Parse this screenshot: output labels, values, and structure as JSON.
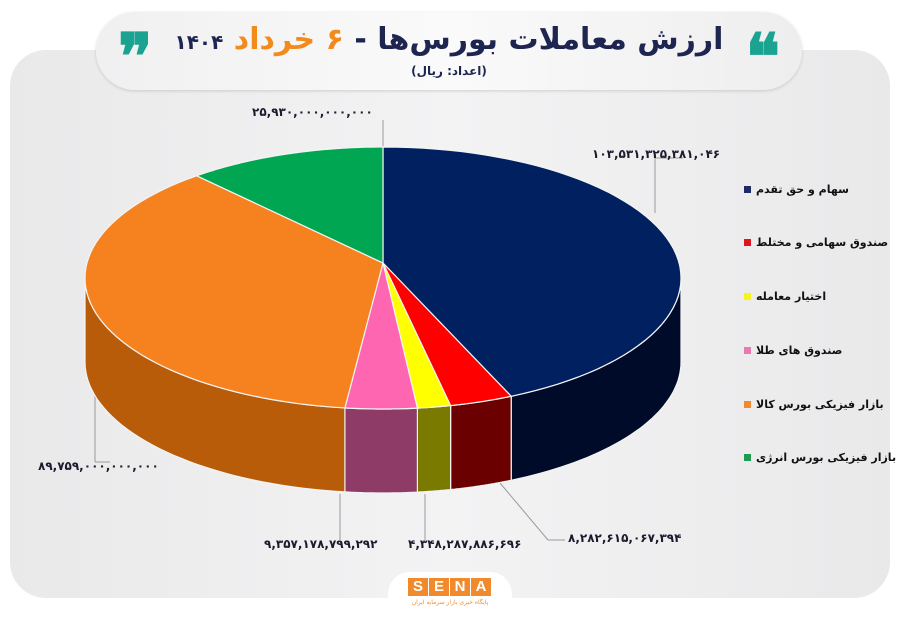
{
  "header": {
    "title_main": "ارزش معاملات بورس‌ها -",
    "title_accent": "۶ خرداد",
    "title_year": "۱۴۰۴",
    "subtitle": "(اعداد: ریال)",
    "quote_open": "❞",
    "quote_close": "❝"
  },
  "chart_data": {
    "type": "pie",
    "title": "ارزش معاملات بورس‌ها - ۶ خرداد ۱۴۰۴",
    "subtitle": "(اعداد: ریال)",
    "unit": "ریال",
    "style": "3d",
    "legend_position": "right",
    "categories": [
      "سهام و حق تقدم",
      "صندوق سهامی و مختلط",
      "اختیار معامله",
      "صندوق های طلا",
      "بازار فیزیکی بورس کالا",
      "بازار فیزیکی بورس انرژی"
    ],
    "values": [
      103531325381046,
      8282615067394,
      4348287886696,
      9357178799292,
      89759000000000,
      25930000000000
    ],
    "colors": [
      "#00205f",
      "#ff0000",
      "#ffff00",
      "#ff66b2",
      "#f5821f",
      "#00a651"
    ],
    "side_colors": [
      "#000b2a",
      "#6b0000",
      "#7a7a00",
      "#8e3b67",
      "#b85c0a",
      "#007a3b"
    ]
  },
  "labels": {
    "navy": "۱۰۳,۵۳۱,۳۲۵,۳۸۱,۰۴۶",
    "red": "۸,۲۸۲,۶۱۵,۰۶۷,۳۹۴",
    "yellow": "۴,۳۴۸,۲۸۷,۸۸۶,۶۹۶",
    "pink": "۹,۳۵۷,۱۷۸,۷۹۹,۲۹۲",
    "orange": "۸۹,۷۵۹,۰۰۰,۰۰۰,۰۰۰",
    "green": "۲۵,۹۳۰,۰۰۰,۰۰۰,۰۰۰"
  },
  "legend": [
    {
      "label": "سهام و حق تقدم",
      "color": "#1d2a66"
    },
    {
      "label": "صندوق سهامی و مختلط",
      "color": "#e0141e"
    },
    {
      "label": "اختیار معامله",
      "color": "#f5f51a"
    },
    {
      "label": "صندوق های طلا",
      "color": "#e87ab0"
    },
    {
      "label": "بازار فیزیکی بورس کالا",
      "color": "#f08a2c"
    },
    {
      "label": "بازار فیزیکی بورس انرژی",
      "color": "#1f9a55"
    }
  ],
  "footer": {
    "logo_letters": [
      "S",
      "E",
      "N",
      "A"
    ],
    "logo_sub": "پایگاه خبری بازار سرمایه ایران"
  }
}
